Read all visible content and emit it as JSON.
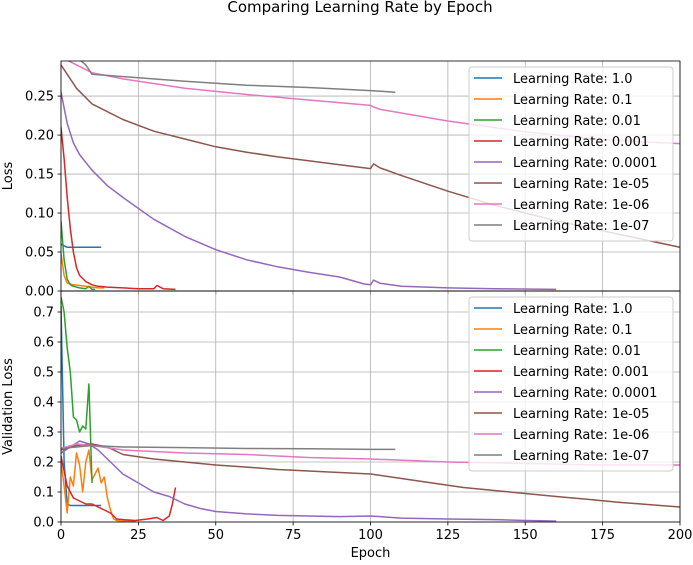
{
  "figure_title": "Comparing Learning Rate by Epoch",
  "colors": {
    "lr_1": "#1f77b4",
    "lr_01": "#ff7f0e",
    "lr_001": "#2ca02c",
    "lr_0001": "#d62728",
    "lr_00001": "#9467bd",
    "lr_1e05": "#8c564b",
    "lr_1e06": "#e377c2",
    "lr_1e07": "#7f7f7f",
    "grid": "#b0b0b0"
  },
  "chart_data": [
    {
      "type": "line",
      "ylabel": "Loss",
      "xlabel": "",
      "xlim": [
        0,
        200
      ],
      "ylim": [
        0,
        0.295
      ],
      "xticks": [
        0,
        25,
        50,
        75,
        100,
        125,
        150,
        175,
        200
      ],
      "yticks": [
        0,
        0.05,
        0.1,
        0.15,
        0.2,
        0.25
      ],
      "ytick_labels": [
        "0.00",
        "0.05",
        "0.10",
        "0.15",
        "0.20",
        "0.25"
      ],
      "grid": true,
      "legend_position": "upper right",
      "series": [
        {
          "name": "Learning Rate: 1.0",
          "color_key": "lr_1",
          "x": [
            0,
            1,
            2,
            3,
            5,
            8,
            10,
            13
          ],
          "y": [
            0.06,
            0.058,
            0.056,
            0.056,
            0.056,
            0.056,
            0.056,
            0.056
          ]
        },
        {
          "name": "Learning Rate: 0.1",
          "color_key": "lr_01",
          "x": [
            0,
            1,
            2,
            4,
            6,
            8,
            10,
            12,
            14
          ],
          "y": [
            0.048,
            0.02,
            0.01,
            0.008,
            0.007,
            0.006,
            0.005,
            0.004,
            0.004
          ]
        },
        {
          "name": "Learning Rate: 0.01",
          "color_key": "lr_001",
          "x": [
            0,
            1,
            2,
            3,
            4,
            6,
            8,
            9,
            10,
            11
          ],
          "y": [
            0.09,
            0.04,
            0.015,
            0.008,
            0.006,
            0.004,
            0.003,
            0.006,
            0.002,
            0.002
          ]
        },
        {
          "name": "Learning Rate: 0.001",
          "color_key": "lr_0001",
          "x": [
            0,
            1,
            2,
            3,
            4,
            5,
            6,
            8,
            10,
            12,
            15,
            20,
            25,
            30,
            31,
            33,
            37
          ],
          "y": [
            0.21,
            0.17,
            0.12,
            0.08,
            0.05,
            0.03,
            0.02,
            0.012,
            0.008,
            0.006,
            0.005,
            0.004,
            0.003,
            0.003,
            0.007,
            0.003,
            0.002
          ]
        },
        {
          "name": "Learning Rate: 0.0001",
          "color_key": "lr_00001",
          "x": [
            0,
            2,
            4,
            6,
            10,
            15,
            20,
            30,
            40,
            50,
            60,
            70,
            80,
            90,
            98,
            100,
            101,
            103,
            110,
            125,
            140,
            160
          ],
          "y": [
            0.255,
            0.215,
            0.19,
            0.175,
            0.155,
            0.135,
            0.12,
            0.092,
            0.07,
            0.053,
            0.04,
            0.031,
            0.024,
            0.018,
            0.009,
            0.008,
            0.014,
            0.01,
            0.006,
            0.004,
            0.003,
            0.002
          ]
        },
        {
          "name": "Learning Rate: 1e-05",
          "color_key": "lr_1e05",
          "x": [
            0,
            5,
            10,
            20,
            30,
            40,
            50,
            60,
            70,
            80,
            90,
            100,
            101,
            103,
            110,
            125,
            140,
            160,
            180,
            200
          ],
          "y": [
            0.29,
            0.26,
            0.24,
            0.22,
            0.205,
            0.195,
            0.185,
            0.178,
            0.172,
            0.167,
            0.162,
            0.157,
            0.163,
            0.158,
            0.148,
            0.128,
            0.11,
            0.09,
            0.073,
            0.056
          ]
        },
        {
          "name": "Learning Rate: 1e-06",
          "color_key": "lr_1e06",
          "x": [
            0,
            5,
            10,
            20,
            40,
            60,
            80,
            100,
            101,
            103,
            125,
            150,
            175,
            200
          ],
          "y": [
            0.3,
            0.29,
            0.28,
            0.272,
            0.26,
            0.252,
            0.245,
            0.238,
            0.236,
            0.233,
            0.218,
            0.204,
            0.194,
            0.189
          ]
        },
        {
          "name": "Learning Rate: 1e-07",
          "color_key": "lr_1e07",
          "x": [
            0,
            5,
            8,
            10,
            20,
            40,
            60,
            80,
            100,
            108
          ],
          "y": [
            0.31,
            0.3,
            0.29,
            0.278,
            0.275,
            0.269,
            0.264,
            0.261,
            0.257,
            0.255
          ]
        }
      ]
    },
    {
      "type": "line",
      "ylabel": "Validation Loss",
      "xlabel": "Epoch",
      "xlim": [
        0,
        200
      ],
      "ylim": [
        0,
        0.77
      ],
      "xticks": [
        0,
        25,
        50,
        75,
        100,
        125,
        150,
        175,
        200
      ],
      "yticks": [
        0,
        0.1,
        0.2,
        0.3,
        0.4,
        0.5,
        0.6,
        0.7
      ],
      "ytick_labels": [
        "0.0",
        "0.1",
        "0.2",
        "0.3",
        "0.4",
        "0.5",
        "0.6",
        "0.7"
      ],
      "grid": true,
      "legend_position": "upper right",
      "series": [
        {
          "name": "Learning Rate: 1.0",
          "color_key": "lr_1",
          "x": [
            0,
            1,
            2,
            3,
            5,
            8,
            10,
            13
          ],
          "y": [
            0.72,
            0.2,
            0.06,
            0.055,
            0.055,
            0.055,
            0.055,
            0.055
          ]
        },
        {
          "name": "Learning Rate: 0.1",
          "color_key": "lr_01",
          "x": [
            0,
            1,
            2,
            3,
            4,
            5,
            6,
            7,
            8,
            9,
            10,
            11,
            12,
            13,
            14,
            15,
            16,
            17,
            18,
            20,
            22,
            24
          ],
          "y": [
            0.2,
            0.12,
            0.03,
            0.15,
            0.12,
            0.23,
            0.19,
            0.1,
            0.2,
            0.24,
            0.14,
            0.16,
            0.18,
            0.13,
            0.15,
            0.08,
            0.04,
            0.01,
            0.005,
            0.003,
            0.003,
            0.003
          ]
        },
        {
          "name": "Learning Rate: 0.01",
          "color_key": "lr_001",
          "x": [
            0,
            1,
            2,
            3,
            4,
            5,
            6,
            7,
            8,
            9,
            10
          ],
          "y": [
            0.75,
            0.7,
            0.58,
            0.5,
            0.35,
            0.34,
            0.3,
            0.32,
            0.31,
            0.46,
            0.13
          ]
        },
        {
          "name": "Learning Rate: 0.001",
          "color_key": "lr_0001",
          "x": [
            0,
            1,
            2,
            4,
            6,
            8,
            10,
            12,
            14,
            16,
            18,
            20,
            24,
            28,
            31,
            33,
            35,
            36,
            37
          ],
          "y": [
            0.22,
            0.17,
            0.12,
            0.08,
            0.07,
            0.06,
            0.06,
            0.05,
            0.04,
            0.03,
            0.01,
            0.008,
            0.005,
            0.01,
            0.015,
            0.005,
            0.02,
            0.06,
            0.115
          ]
        },
        {
          "name": "Learning Rate: 0.0001",
          "color_key": "lr_00001",
          "x": [
            0,
            3,
            6,
            9,
            12,
            16,
            20,
            25,
            30,
            35,
            40,
            45,
            50,
            60,
            70,
            80,
            90,
            100,
            110,
            125,
            140,
            150,
            155,
            160
          ],
          "y": [
            0.23,
            0.25,
            0.27,
            0.26,
            0.24,
            0.2,
            0.16,
            0.13,
            0.1,
            0.085,
            0.06,
            0.045,
            0.035,
            0.027,
            0.022,
            0.02,
            0.018,
            0.02,
            0.013,
            0.01,
            0.008,
            0.005,
            0.004,
            0.003
          ]
        },
        {
          "name": "Learning Rate: 1e-05",
          "color_key": "lr_1e05",
          "x": [
            0,
            5,
            10,
            15,
            20,
            30,
            40,
            50,
            60,
            70,
            80,
            90,
            100,
            110,
            120,
            130,
            140,
            150,
            160,
            170,
            180,
            190,
            200
          ],
          "y": [
            0.24,
            0.255,
            0.26,
            0.25,
            0.225,
            0.21,
            0.2,
            0.19,
            0.183,
            0.175,
            0.17,
            0.165,
            0.16,
            0.145,
            0.13,
            0.115,
            0.105,
            0.095,
            0.085,
            0.076,
            0.066,
            0.058,
            0.05
          ]
        },
        {
          "name": "Learning Rate: 1e-06",
          "color_key": "lr_1e06",
          "x": [
            0,
            5,
            10,
            20,
            40,
            60,
            80,
            100,
            125,
            150,
            175,
            200
          ],
          "y": [
            0.245,
            0.26,
            0.255,
            0.24,
            0.23,
            0.225,
            0.215,
            0.21,
            0.2,
            0.195,
            0.19,
            0.19
          ]
        },
        {
          "name": "Learning Rate: 1e-07",
          "color_key": "lr_1e07",
          "x": [
            0,
            5,
            10,
            20,
            40,
            60,
            80,
            100,
            108
          ],
          "y": [
            0.245,
            0.25,
            0.255,
            0.25,
            0.248,
            0.245,
            0.244,
            0.242,
            0.242
          ]
        }
      ]
    }
  ]
}
